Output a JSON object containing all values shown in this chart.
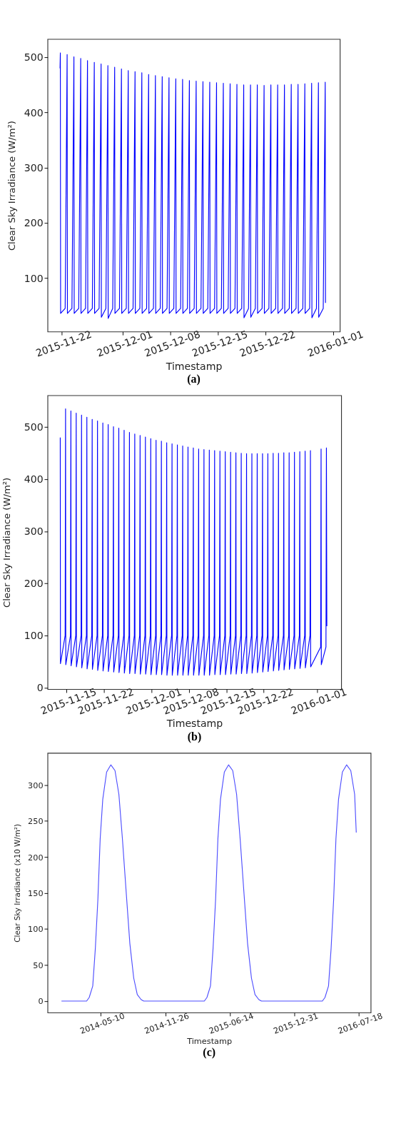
{
  "chart_data": [
    {
      "type": "line",
      "title": "(a)",
      "xlabel": "Timestamp",
      "ylabel": "Clear Sky Irradiance (W/m²)",
      "xlim": [
        "2015-11-19T22:00",
        "2016-01-01T23:00"
      ],
      "ylim": [
        3,
        533
      ],
      "xticks": [
        "2015-11-22",
        "2015-12-01",
        "2015-12-08",
        "2015-12-15",
        "2015-12-22",
        "2016-01-01"
      ],
      "yticks": [
        100,
        200,
        300,
        400,
        500
      ],
      "series": [
        {
          "color": "#0000ff",
          "x": [
            "2015-11-21T18:00",
            "2015-11-21T19:00",
            "2015-11-21T20:00",
            "2015-11-22T12:00",
            "2015-11-22T19:00",
            "2015-11-22T20:00",
            "2015-11-23T12:00",
            "2015-11-23T19:00",
            "2015-11-23T20:00",
            "2015-11-24T12:00",
            "2015-11-24T19:00",
            "2015-11-24T20:00",
            "2015-11-25T12:00",
            "2015-11-25T19:00",
            "2015-11-25T20:00",
            "2015-11-26T12:00",
            "2015-11-26T19:00",
            "2015-11-26T20:00",
            "2015-11-27T12:00",
            "2015-11-27T19:00",
            "2015-11-27T20:00",
            "2015-11-28T12:00",
            "2015-11-28T19:00",
            "2015-11-28T20:00",
            "2015-11-29T12:00",
            "2015-11-29T19:00",
            "2015-11-29T20:00",
            "2015-11-30T12:00",
            "2015-11-30T19:00",
            "2015-11-30T20:00",
            "2015-12-01T12:00",
            "2015-12-01T19:00",
            "2015-12-01T20:00",
            "2015-12-02T12:00",
            "2015-12-02T19:00",
            "2015-12-02T20:00",
            "2015-12-03T12:00",
            "2015-12-03T19:00",
            "2015-12-03T20:00",
            "2015-12-04T12:00",
            "2015-12-04T19:00",
            "2015-12-04T20:00",
            "2015-12-05T12:00",
            "2015-12-05T19:00",
            "2015-12-05T20:00",
            "2015-12-06T12:00",
            "2015-12-06T19:00",
            "2015-12-06T20:00",
            "2015-12-07T12:00",
            "2015-12-07T19:00",
            "2015-12-07T20:00",
            "2015-12-08T12:00",
            "2015-12-08T19:00",
            "2015-12-08T20:00",
            "2015-12-09T12:00",
            "2015-12-09T19:00",
            "2015-12-09T20:00",
            "2015-12-10T12:00",
            "2015-12-10T19:00",
            "2015-12-10T20:00",
            "2015-12-11T12:00",
            "2015-12-11T19:00",
            "2015-12-11T20:00",
            "2015-12-12T12:00",
            "2015-12-12T19:00",
            "2015-12-12T20:00",
            "2015-12-13T12:00",
            "2015-12-13T19:00",
            "2015-12-13T20:00",
            "2015-12-14T12:00",
            "2015-12-14T19:00",
            "2015-12-14T20:00",
            "2015-12-15T12:00",
            "2015-12-15T19:00",
            "2015-12-15T20:00",
            "2015-12-16T12:00",
            "2015-12-16T19:00",
            "2015-12-16T20:00",
            "2015-12-17T12:00",
            "2015-12-17T19:00",
            "2015-12-17T20:00",
            "2015-12-18T12:00",
            "2015-12-18T19:00",
            "2015-12-18T20:00",
            "2015-12-19T12:00",
            "2015-12-19T19:00",
            "2015-12-19T20:00",
            "2015-12-20T12:00",
            "2015-12-20T19:00",
            "2015-12-20T20:00",
            "2015-12-21T12:00",
            "2015-12-21T19:00",
            "2015-12-21T20:00",
            "2015-12-22T12:00",
            "2015-12-22T19:00",
            "2015-12-22T20:00",
            "2015-12-23T12:00",
            "2015-12-23T19:00",
            "2015-12-23T20:00",
            "2015-12-24T12:00",
            "2015-12-24T19:00",
            "2015-12-24T20:00",
            "2015-12-25T12:00",
            "2015-12-25T19:00",
            "2015-12-25T20:00",
            "2015-12-26T12:00",
            "2015-12-26T19:00",
            "2015-12-26T20:00",
            "2015-12-27T12:00",
            "2015-12-27T19:00",
            "2015-12-27T20:00",
            "2015-12-28T12:00",
            "2015-12-28T19:00",
            "2015-12-28T20:00",
            "2015-12-29T12:00",
            "2015-12-29T19:00",
            "2015-12-29T20:00",
            "2015-12-30T12:00",
            "2015-12-30T19:00",
            "2015-12-30T20:00"
          ],
          "values": [
            480,
            508,
            36,
            45,
            505,
            36,
            45,
            501,
            36,
            45,
            498,
            36,
            45,
            494,
            36,
            45,
            491,
            36,
            45,
            488,
            29,
            45,
            485,
            27,
            45,
            482,
            36,
            45,
            479,
            36,
            45,
            476,
            36,
            45,
            474,
            36,
            45,
            472,
            36,
            45,
            469,
            36,
            45,
            467,
            36,
            45,
            465,
            36,
            45,
            463,
            36,
            45,
            461,
            36,
            45,
            460,
            36,
            45,
            458,
            36,
            45,
            457,
            36,
            45,
            456,
            36,
            45,
            455,
            36,
            45,
            454,
            36,
            45,
            453,
            36,
            45,
            452,
            36,
            45,
            451,
            36,
            45,
            450,
            28,
            45,
            450,
            29,
            45,
            450,
            36,
            45,
            449,
            36,
            45,
            450,
            36,
            45,
            450,
            36,
            45,
            450,
            36,
            45,
            451,
            36,
            45,
            451,
            36,
            45,
            452,
            36,
            45,
            453,
            28,
            45,
            454,
            29,
            45,
            455,
            55
          ]
        }
      ]
    },
    {
      "type": "line",
      "title": "(b)",
      "xlabel": "Timestamp",
      "ylabel": "Clear Sky Irradiance (W/m²)",
      "xlim": [
        "2015-11-11T10:00",
        "2016-01-05T14:00"
      ],
      "ylim": [
        -3,
        561
      ],
      "xticks": [
        "2015-11-15",
        "2015-11-22",
        "2015-12-01",
        "2015-12-08",
        "2015-12-15",
        "2015-12-22",
        "2016-01-01"
      ],
      "yticks": [
        0,
        100,
        200,
        300,
        400,
        500
      ],
      "series": [
        {
          "color": "#0000ff",
          "x": [
            "2015-11-13T19:00",
            "2015-11-13T20:00",
            "2015-11-14T17:00",
            "2015-11-14T19:00",
            "2015-11-14T20:00",
            "2015-11-15T17:00",
            "2015-11-15T19:00",
            "2015-11-15T20:00",
            "2015-11-16T17:00",
            "2015-11-16T19:00",
            "2015-11-16T20:00",
            "2015-11-17T17:00",
            "2015-11-17T19:00",
            "2015-11-17T20:00",
            "2015-11-18T17:00",
            "2015-11-18T19:00",
            "2015-11-18T20:00",
            "2015-11-19T17:00",
            "2015-11-19T19:00",
            "2015-11-19T20:00",
            "2015-11-20T17:00",
            "2015-11-20T19:00",
            "2015-11-20T20:00",
            "2015-11-21T17:00",
            "2015-11-21T19:00",
            "2015-11-21T20:00",
            "2015-11-22T17:00",
            "2015-11-22T19:00",
            "2015-11-22T20:00",
            "2015-11-23T17:00",
            "2015-11-23T19:00",
            "2015-11-23T20:00",
            "2015-11-24T17:00",
            "2015-11-24T19:00",
            "2015-11-24T20:00",
            "2015-11-25T17:00",
            "2015-11-25T19:00",
            "2015-11-25T20:00",
            "2015-11-26T17:00",
            "2015-11-26T19:00",
            "2015-11-26T20:00",
            "2015-11-27T17:00",
            "2015-11-27T19:00",
            "2015-11-27T20:00",
            "2015-11-28T17:00",
            "2015-11-28T19:00",
            "2015-11-28T20:00",
            "2015-11-29T17:00",
            "2015-11-29T19:00",
            "2015-11-29T20:00",
            "2015-11-30T17:00",
            "2015-11-30T19:00",
            "2015-11-30T20:00",
            "2015-12-01T17:00",
            "2015-12-01T19:00",
            "2015-12-01T20:00",
            "2015-12-02T17:00",
            "2015-12-02T19:00",
            "2015-12-02T20:00",
            "2015-12-03T17:00",
            "2015-12-03T19:00",
            "2015-12-03T20:00",
            "2015-12-04T17:00",
            "2015-12-04T19:00",
            "2015-12-04T20:00",
            "2015-12-05T17:00",
            "2015-12-05T19:00",
            "2015-12-05T20:00",
            "2015-12-06T17:00",
            "2015-12-06T19:00",
            "2015-12-06T20:00",
            "2015-12-07T17:00",
            "2015-12-07T19:00",
            "2015-12-07T20:00",
            "2015-12-08T17:00",
            "2015-12-08T19:00",
            "2015-12-08T20:00",
            "2015-12-09T17:00",
            "2015-12-09T19:00",
            "2015-12-09T20:00",
            "2015-12-10T17:00",
            "2015-12-10T19:00",
            "2015-12-10T20:00",
            "2015-12-11T17:00",
            "2015-12-11T19:00",
            "2015-12-11T20:00",
            "2015-12-12T17:00",
            "2015-12-12T19:00",
            "2015-12-12T20:00",
            "2015-12-13T17:00",
            "2015-12-13T19:00",
            "2015-12-13T20:00",
            "2015-12-14T17:00",
            "2015-12-14T19:00",
            "2015-12-14T20:00",
            "2015-12-15T17:00",
            "2015-12-15T19:00",
            "2015-12-15T20:00",
            "2015-12-16T17:00",
            "2015-12-16T19:00",
            "2015-12-16T20:00",
            "2015-12-17T17:00",
            "2015-12-17T19:00",
            "2015-12-17T20:00",
            "2015-12-18T17:00",
            "2015-12-18T19:00",
            "2015-12-18T20:00",
            "2015-12-19T17:00",
            "2015-12-19T19:00",
            "2015-12-19T20:00",
            "2015-12-20T17:00",
            "2015-12-20T19:00",
            "2015-12-20T20:00",
            "2015-12-21T17:00",
            "2015-12-21T19:00",
            "2015-12-21T20:00",
            "2015-12-22T17:00",
            "2015-12-22T19:00",
            "2015-12-22T20:00",
            "2015-12-23T17:00",
            "2015-12-23T19:00",
            "2015-12-23T20:00",
            "2015-12-24T17:00",
            "2015-12-24T19:00",
            "2015-12-24T20:00",
            "2015-12-25T17:00",
            "2015-12-25T19:00",
            "2015-12-25T20:00",
            "2015-12-26T17:00",
            "2015-12-26T19:00",
            "2015-12-26T20:00",
            "2015-12-27T17:00",
            "2015-12-27T19:00",
            "2015-12-27T20:00",
            "2015-12-28T17:00",
            "2015-12-28T19:00",
            "2015-12-28T20:00",
            "2015-12-29T17:00",
            "2015-12-29T19:00",
            "2015-12-29T20:00",
            "2015-12-30T17:00",
            "2015-12-30T19:00",
            "2015-12-30T20:00",
            "2016-01-01T17:00",
            "2016-01-01T19:00",
            "2016-01-01T20:00",
            "2016-01-02T17:00",
            "2016-01-02T19:00",
            "2016-01-02T21:00"
          ],
          "values": [
            480,
            46,
            100,
            535,
            44,
            100,
            531,
            42,
            100,
            527,
            40,
            100,
            523,
            38,
            100,
            519,
            36,
            100,
            515,
            35,
            100,
            512,
            33,
            100,
            508,
            32,
            100,
            505,
            31,
            100,
            501,
            30,
            100,
            498,
            29,
            100,
            494,
            28,
            100,
            490,
            27,
            100,
            487,
            27,
            100,
            484,
            26,
            100,
            481,
            26,
            100,
            478,
            25,
            100,
            475,
            25,
            100,
            473,
            25,
            100,
            470,
            24,
            100,
            468,
            24,
            100,
            466,
            24,
            100,
            464,
            24,
            100,
            462,
            24,
            100,
            460,
            24,
            100,
            458,
            24,
            100,
            457,
            24,
            100,
            456,
            24,
            100,
            455,
            25,
            100,
            454,
            25,
            100,
            453,
            25,
            100,
            452,
            26,
            100,
            451,
            26,
            100,
            450,
            27,
            100,
            449,
            27,
            100,
            449,
            28,
            100,
            449,
            29,
            100,
            449,
            30,
            100,
            449,
            31,
            100,
            450,
            32,
            100,
            450,
            33,
            100,
            451,
            34,
            100,
            451,
            35,
            100,
            452,
            36,
            100,
            453,
            37,
            100,
            454,
            38,
            100,
            455,
            40,
            78,
            458,
            44,
            78,
            460,
            118
          ]
        }
      ]
    },
    {
      "type": "line",
      "title": "(c)",
      "xlabel": "Timestamp",
      "ylabel": "Clear Sky Irradiance (x10 W/m²)",
      "xlim": [
        "2013-11-26",
        "2016-08-24"
      ],
      "ylim": [
        -16,
        344.5
      ],
      "xticks": [
        "2014-05-10",
        "2014-11-26",
        "2015-06-14",
        "2015-12-31",
        "2016-07-18"
      ],
      "yticks": [
        0,
        50,
        100,
        150,
        200,
        250,
        300
      ],
      "series": [
        {
          "color": "#4d4dff",
          "x": [
            "2014-01-08",
            "2014-03-27",
            "2014-04-04",
            "2014-04-15",
            "2014-04-23",
            "2014-05-01",
            "2014-05-08",
            "2014-05-16",
            "2014-05-28",
            "2014-06-10",
            "2014-06-23",
            "2014-07-05",
            "2014-07-16",
            "2014-07-28",
            "2014-08-08",
            "2014-08-20",
            "2014-08-31",
            "2014-09-12",
            "2014-09-20",
            "2015-03-27",
            "2015-04-04",
            "2015-04-15",
            "2015-04-23",
            "2015-05-01",
            "2015-05-08",
            "2015-05-16",
            "2015-05-28",
            "2015-06-10",
            "2015-06-23",
            "2015-07-05",
            "2015-07-16",
            "2015-07-28",
            "2015-08-08",
            "2015-08-20",
            "2015-08-31",
            "2015-09-12",
            "2015-09-20",
            "2016-03-27",
            "2016-04-04",
            "2016-04-15",
            "2016-04-23",
            "2016-05-01",
            "2016-05-08",
            "2016-05-16",
            "2016-05-28",
            "2016-06-10",
            "2016-06-23",
            "2016-07-05",
            "2016-07-10"
          ],
          "values": [
            0,
            0,
            5,
            21,
            73,
            142,
            225,
            280,
            318,
            328,
            320,
            287,
            225,
            149,
            80,
            32,
            9,
            2,
            0,
            0,
            5,
            21,
            73,
            142,
            225,
            280,
            318,
            328,
            320,
            287,
            225,
            149,
            80,
            32,
            9,
            2,
            0,
            0,
            5,
            21,
            73,
            142,
            225,
            280,
            318,
            328,
            320,
            287,
            234
          ]
        }
      ]
    }
  ]
}
